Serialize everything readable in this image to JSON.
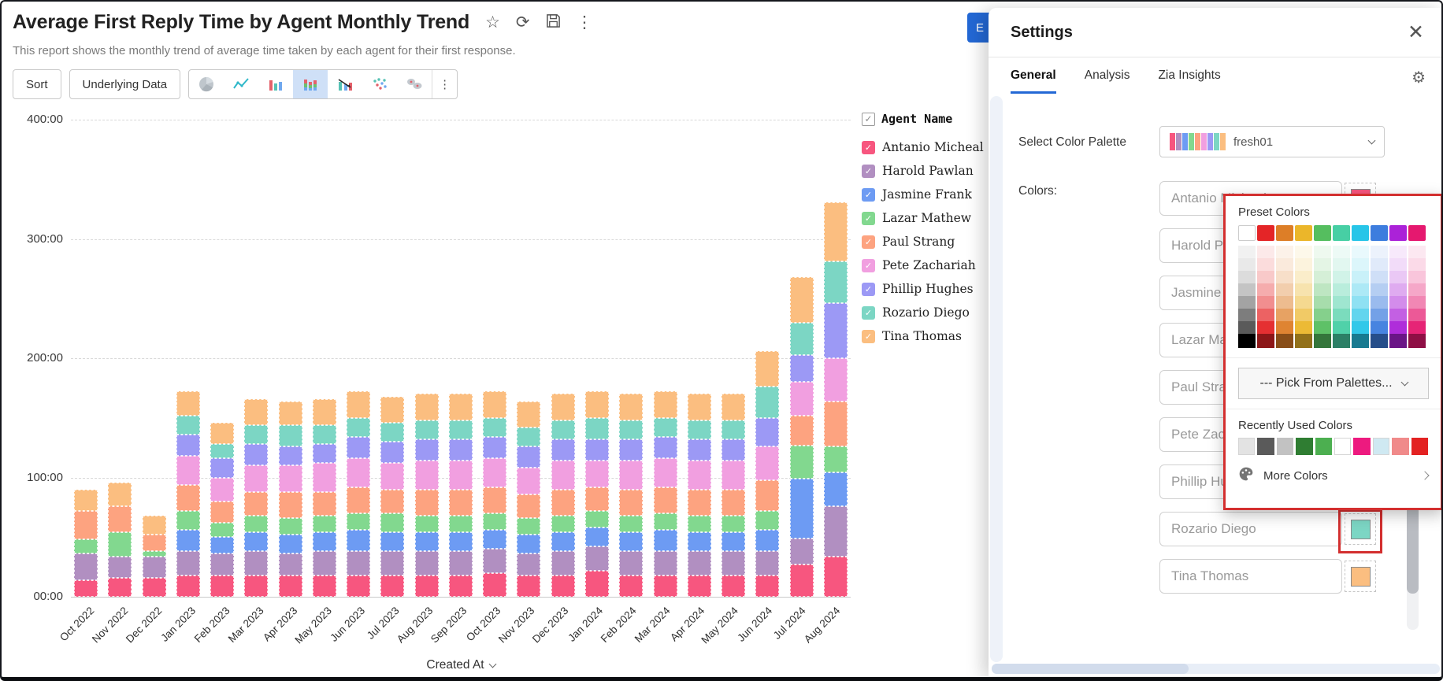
{
  "header": {
    "title": "Average First Reply Time by Agent Monthly Trend",
    "subtitle": "This report shows the monthly trend of average time taken by each agent for their first response.",
    "icons": [
      "star-icon",
      "refresh-icon",
      "save-icon",
      "more-vertical-icon"
    ]
  },
  "toolbar": {
    "sort_label": "Sort",
    "underlying_data_label": "Underlying Data",
    "chart_type_icons": [
      "pie-chart-icon",
      "line-chart-icon",
      "bar-chart-icon",
      "stacked-bar-chart-icon",
      "combo-chart-icon",
      "scatter-chart-icon",
      "map-chart-icon"
    ],
    "selected_chart_type": "stacked-bar-chart-icon",
    "more_label": "⋮"
  },
  "chart_data": {
    "type": "bar",
    "stacked": true,
    "title": "Average First Reply Time by Agent Monthly Trend",
    "xlabel": "Created At",
    "ylabel": "",
    "y_unit": "mm:ss",
    "ylim": [
      0,
      400
    ],
    "yticks": [
      "00:00",
      "100:00",
      "200:00",
      "300:00",
      "400:00"
    ],
    "grid": "dashed-horizontal",
    "legend_position": "right",
    "categories": [
      "Oct 2022",
      "Nov 2022",
      "Dec 2022",
      "Jan 2023",
      "Feb 2023",
      "Mar 2023",
      "Apr 2023",
      "May 2023",
      "Jun 2023",
      "Jul 2023",
      "Aug 2023",
      "Sep 2023",
      "Oct 2023",
      "Nov 2023",
      "Dec 2023",
      "Jan 2024",
      "Feb 2024",
      "Mar 2024",
      "Apr 2024",
      "May 2024",
      "Jun 2024",
      "Jul 2024",
      "Aug 2024"
    ],
    "series": [
      {
        "name": "Antanio Micheal",
        "color": "#F7567F",
        "values": [
          14,
          16,
          16,
          18,
          18,
          18,
          18,
          18,
          18,
          18,
          18,
          18,
          20,
          18,
          18,
          22,
          18,
          18,
          18,
          18,
          18,
          27,
          34
        ]
      },
      {
        "name": "Harold Pawlan",
        "color": "#B18FC1",
        "values": [
          22,
          18,
          18,
          20,
          18,
          20,
          18,
          20,
          20,
          20,
          20,
          20,
          20,
          18,
          20,
          20,
          20,
          20,
          20,
          20,
          20,
          22,
          42
        ]
      },
      {
        "name": "Jasmine Frank",
        "color": "#6D9BF3",
        "values": [
          0,
          0,
          0,
          18,
          14,
          16,
          16,
          16,
          18,
          16,
          16,
          16,
          16,
          16,
          16,
          16,
          16,
          18,
          16,
          16,
          18,
          50,
          28
        ]
      },
      {
        "name": "Lazar Mathew",
        "color": "#82D88F",
        "values": [
          12,
          20,
          4,
          16,
          12,
          14,
          14,
          14,
          14,
          16,
          14,
          14,
          14,
          14,
          14,
          14,
          14,
          14,
          14,
          14,
          16,
          28,
          22
        ]
      },
      {
        "name": "Paul Strang",
        "color": "#FDA380",
        "values": [
          24,
          22,
          14,
          22,
          18,
          20,
          22,
          20,
          22,
          20,
          22,
          22,
          22,
          20,
          22,
          20,
          22,
          22,
          22,
          22,
          26,
          25,
          38
        ]
      },
      {
        "name": "Pete Zachariah",
        "color": "#F19FE0",
        "values": [
          0,
          0,
          0,
          24,
          20,
          22,
          22,
          24,
          24,
          22,
          24,
          24,
          24,
          22,
          24,
          22,
          24,
          24,
          24,
          24,
          28,
          28,
          36
        ]
      },
      {
        "name": "Phillip Hughes",
        "color": "#9C99F5",
        "values": [
          0,
          0,
          0,
          18,
          16,
          18,
          16,
          16,
          18,
          18,
          18,
          18,
          18,
          18,
          18,
          18,
          18,
          18,
          18,
          18,
          24,
          23,
          46
        ]
      },
      {
        "name": "Rozario Diego",
        "color": "#7CD6C4",
        "values": [
          0,
          0,
          0,
          16,
          12,
          16,
          18,
          16,
          16,
          16,
          16,
          16,
          16,
          16,
          16,
          18,
          16,
          16,
          16,
          16,
          26,
          27,
          35
        ]
      },
      {
        "name": "Tina Thomas",
        "color": "#FBBE80",
        "values": [
          18,
          20,
          16,
          20,
          18,
          22,
          20,
          22,
          22,
          22,
          22,
          22,
          22,
          22,
          22,
          22,
          22,
          22,
          22,
          22,
          30,
          38,
          50
        ]
      }
    ]
  },
  "legend": {
    "header": "Agent Name",
    "check_glyph": "✓"
  },
  "settings_panel": {
    "title": "Settings",
    "close_glyph": "✕",
    "tabs": [
      {
        "label": "General",
        "active": true
      },
      {
        "label": "Analysis",
        "active": false
      },
      {
        "label": "Zia Insights",
        "active": false
      }
    ],
    "gear_glyph": "⚙",
    "accent_color": "#2368d5",
    "edit_button_label": "E",
    "select_color_palette_label": "Select Color Palette",
    "palette_dropdown_value": "fresh01",
    "colors_label": "Colors:",
    "highlight_color": "#D32F2F"
  },
  "color_popup": {
    "preset_colors_label": "Preset Colors",
    "base_colors": [
      "#FFFFFF",
      "#E42527",
      "#DD7E27",
      "#EBB62A",
      "#55BE5F",
      "#47CFA4",
      "#27C5E8",
      "#3D7DDE",
      "#AB22D8",
      "#E5186F"
    ],
    "neutral_column": {
      "top": "#FFFFFF",
      "tints": [
        "#F1F1F1",
        "#E9E9E9",
        "#DCDCDC",
        "#C4C4C4",
        "#A3A3A3",
        "#7D7D7D",
        "#5A5A5A"
      ],
      "dark": "#000000"
    },
    "tint_steps": [
      0.1,
      0.16,
      0.25,
      0.38,
      0.52,
      0.72,
      0.95
    ],
    "dark_factor": 0.62,
    "pick_from_palettes_label": "--- Pick From Palettes...",
    "recently_used_label": "Recently Used Colors",
    "recently_used_colors": [
      "#E3E3E3",
      "#5A5A5A",
      "#C2C2C2",
      "#2F7D32",
      "#4CAF50",
      "#FFFFFF",
      "#ED1A7F",
      "#CFE9F2",
      "#F08A8A",
      "#E32222"
    ],
    "more_colors_label": "More Colors"
  }
}
